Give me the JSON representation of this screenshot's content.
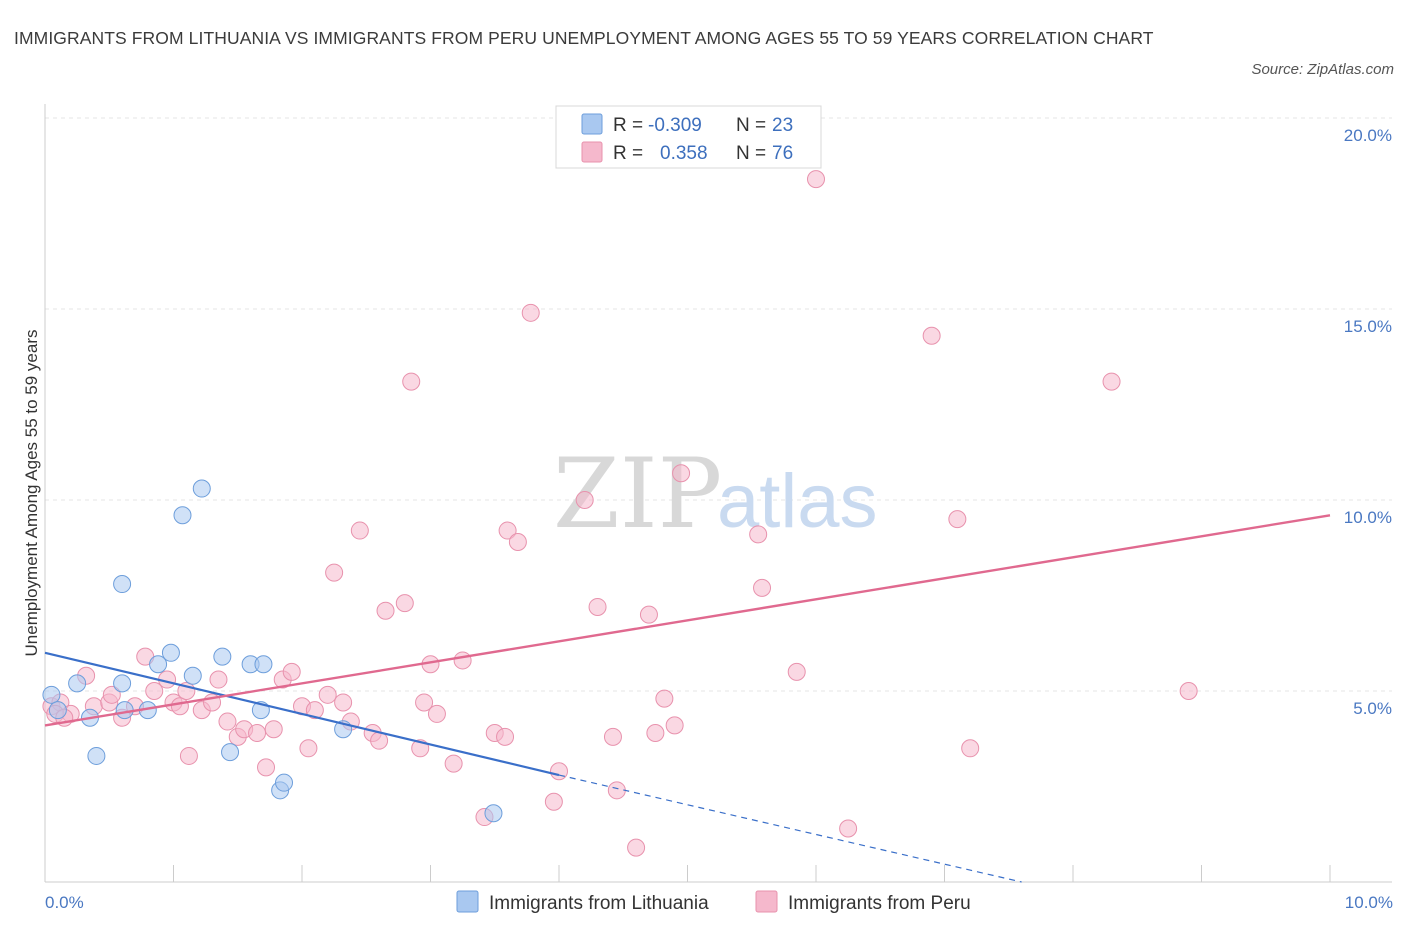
{
  "header": {
    "title": "IMMIGRANTS FROM LITHUANIA VS IMMIGRANTS FROM PERU UNEMPLOYMENT AMONG AGES 55 TO 59 YEARS CORRELATION CHART",
    "source": "Source: ZipAtlas.com"
  },
  "watermark": {
    "zip": "ZIP",
    "atlas": "atlas"
  },
  "legend_box": {
    "rows": [
      {
        "r_label": "R =",
        "r_value": "-0.309",
        "n_label": "N =",
        "n_value": "23",
        "color": "#a9c8f0"
      },
      {
        "r_label": "R =",
        "r_value": "0.358",
        "n_label": "N =",
        "n_value": "76",
        "color": "#f5b8cc"
      }
    ]
  },
  "colors": {
    "blue_fill": "#a9c8f0",
    "blue_stroke": "#6d9edb",
    "blue_line": "#3a6fc9",
    "pink_fill": "#f5b8cc",
    "pink_stroke": "#e892ad",
    "pink_line": "#e0698f",
    "grid": "#e4e4e4",
    "axis": "#cccccc"
  },
  "chart_data": {
    "type": "scatter",
    "title": "IMMIGRANTS FROM LITHUANIA VS IMMIGRANTS FROM PERU UNEMPLOYMENT AMONG AGES 55 TO 59 YEARS CORRELATION CHART",
    "ylabel": "Unemployment Among Ages 55 to 59 years",
    "xlim": [
      0,
      10
    ],
    "ylim": [
      0,
      20
    ],
    "x_ticks": [
      "0.0%",
      "10.0%"
    ],
    "y_ticks": [
      {
        "value": 5,
        "label": "5.0%"
      },
      {
        "value": 10,
        "label": "10.0%"
      },
      {
        "value": 15,
        "label": "15.0%"
      },
      {
        "value": 20,
        "label": "20.0%"
      }
    ],
    "grid": true,
    "legend_placement": "bottom",
    "series": [
      {
        "name": "Immigrants from Lithuania",
        "trend": {
          "x0": 0,
          "y0": 6.0,
          "x1": 4.0,
          "y1": 2.8,
          "dash_to_x": 7.6,
          "dash_to_y": 0.0
        },
        "points": [
          [
            0.05,
            4.9
          ],
          [
            0.1,
            4.5
          ],
          [
            0.25,
            5.2
          ],
          [
            0.35,
            4.3
          ],
          [
            0.4,
            3.3
          ],
          [
            0.6,
            5.2
          ],
          [
            0.62,
            4.5
          ],
          [
            0.6,
            7.8
          ],
          [
            0.8,
            4.5
          ],
          [
            0.88,
            5.7
          ],
          [
            0.98,
            6.0
          ],
          [
            1.07,
            9.6
          ],
          [
            1.15,
            5.4
          ],
          [
            1.22,
            10.3
          ],
          [
            1.38,
            5.9
          ],
          [
            1.44,
            3.4
          ],
          [
            1.6,
            5.7
          ],
          [
            1.7,
            5.7
          ],
          [
            1.68,
            4.5
          ],
          [
            1.83,
            2.4
          ],
          [
            1.86,
            2.6
          ],
          [
            2.32,
            4.0
          ],
          [
            3.49,
            1.8
          ]
        ]
      },
      {
        "name": "Immigrants from Peru",
        "trend": {
          "x0": 0,
          "y0": 4.1,
          "x1": 10,
          "y1": 9.6
        },
        "points": [
          [
            0.05,
            4.6
          ],
          [
            0.12,
            4.7
          ],
          [
            0.2,
            4.4
          ],
          [
            0.32,
            5.4
          ],
          [
            0.38,
            4.6
          ],
          [
            0.5,
            4.7
          ],
          [
            0.52,
            4.9
          ],
          [
            0.6,
            4.3
          ],
          [
            0.7,
            4.6
          ],
          [
            0.78,
            5.9
          ],
          [
            0.85,
            5.0
          ],
          [
            0.95,
            5.3
          ],
          [
            1.0,
            4.7
          ],
          [
            1.05,
            4.6
          ],
          [
            1.1,
            5.0
          ],
          [
            1.12,
            3.3
          ],
          [
            1.22,
            4.5
          ],
          [
            1.3,
            4.7
          ],
          [
            1.35,
            5.3
          ],
          [
            1.42,
            4.2
          ],
          [
            1.5,
            3.8
          ],
          [
            1.55,
            4.0
          ],
          [
            1.65,
            3.9
          ],
          [
            1.72,
            3.0
          ],
          [
            1.78,
            4.0
          ],
          [
            1.85,
            5.3
          ],
          [
            1.92,
            5.5
          ],
          [
            2.0,
            4.6
          ],
          [
            2.05,
            3.5
          ],
          [
            2.1,
            4.5
          ],
          [
            2.2,
            4.9
          ],
          [
            2.25,
            8.1
          ],
          [
            2.32,
            4.7
          ],
          [
            2.38,
            4.2
          ],
          [
            2.45,
            9.2
          ],
          [
            2.55,
            3.9
          ],
          [
            2.6,
            3.7
          ],
          [
            2.65,
            7.1
          ],
          [
            2.8,
            7.3
          ],
          [
            2.85,
            13.1
          ],
          [
            2.92,
            3.5
          ],
          [
            2.95,
            4.7
          ],
          [
            3.0,
            5.7
          ],
          [
            3.05,
            4.4
          ],
          [
            3.18,
            3.1
          ],
          [
            3.25,
            5.8
          ],
          [
            3.42,
            1.7
          ],
          [
            3.5,
            3.9
          ],
          [
            3.58,
            3.8
          ],
          [
            3.6,
            9.2
          ],
          [
            3.68,
            8.9
          ],
          [
            3.78,
            14.9
          ],
          [
            4.0,
            2.9
          ],
          [
            3.96,
            2.1
          ],
          [
            4.2,
            10.0
          ],
          [
            4.3,
            7.2
          ],
          [
            4.42,
            3.8
          ],
          [
            4.45,
            2.4
          ],
          [
            4.6,
            0.9
          ],
          [
            4.7,
            7.0
          ],
          [
            4.75,
            3.9
          ],
          [
            4.82,
            4.8
          ],
          [
            4.9,
            4.1
          ],
          [
            4.95,
            10.7
          ],
          [
            5.55,
            9.1
          ],
          [
            5.58,
            7.7
          ],
          [
            5.85,
            5.5
          ],
          [
            6.0,
            18.4
          ],
          [
            6.25,
            1.4
          ],
          [
            6.9,
            14.3
          ],
          [
            7.1,
            9.5
          ],
          [
            7.2,
            3.5
          ],
          [
            8.3,
            13.1
          ],
          [
            8.9,
            5.0
          ],
          [
            0.08,
            4.4
          ],
          [
            0.15,
            4.3
          ]
        ]
      }
    ]
  },
  "bottom_legend": {
    "items": [
      {
        "label": "Immigrants from Lithuania",
        "color": "#a9c8f0"
      },
      {
        "label": "Immigrants from Peru",
        "color": "#f5b8cc"
      }
    ]
  }
}
